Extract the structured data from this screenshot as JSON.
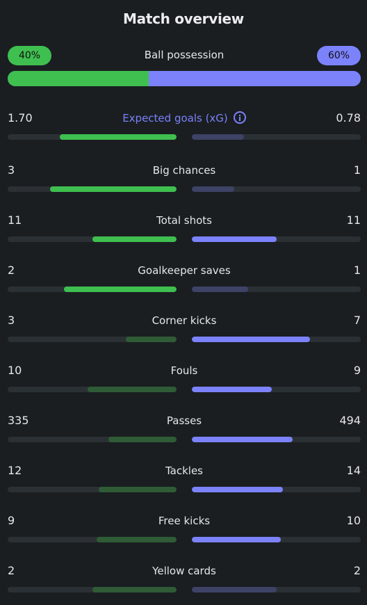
{
  "title": "Match overview",
  "colors": {
    "background": "#1a1e21",
    "home_strong": "#3fbf4f",
    "home_weak": "#2f5c36",
    "away_strong": "#7b82fa",
    "away_weak": "#3d4266",
    "track": "#2b3034"
  },
  "possession": {
    "label": "Ball possession",
    "home_text": "40%",
    "away_text": "60%",
    "home_fraction": 0.4
  },
  "stats": [
    {
      "key": "xg",
      "label": "Expected goals (xG)",
      "home": "1.70",
      "away": "0.78",
      "home_fraction": 0.69,
      "away_fraction": 0.31,
      "home_strong": true,
      "away_strong": false,
      "info_icon": true,
      "highlight": true
    },
    {
      "key": "big-chances",
      "label": "Big chances",
      "home": "3",
      "away": "1",
      "home_fraction": 0.75,
      "away_fraction": 0.25,
      "home_strong": true,
      "away_strong": false
    },
    {
      "key": "total-shots",
      "label": "Total shots",
      "home": "11",
      "away": "11",
      "home_fraction": 0.5,
      "away_fraction": 0.5,
      "home_strong": true,
      "away_strong": true
    },
    {
      "key": "goalkeeper-saves",
      "label": "Goalkeeper saves",
      "home": "2",
      "away": "1",
      "home_fraction": 0.667,
      "away_fraction": 0.333,
      "home_strong": true,
      "away_strong": false
    },
    {
      "key": "corner-kicks",
      "label": "Corner kicks",
      "home": "3",
      "away": "7",
      "home_fraction": 0.3,
      "away_fraction": 0.7,
      "home_strong": false,
      "away_strong": true
    },
    {
      "key": "fouls",
      "label": "Fouls",
      "home": "10",
      "away": "9",
      "home_fraction": 0.526,
      "away_fraction": 0.474,
      "home_strong": false,
      "away_strong": true
    },
    {
      "key": "passes",
      "label": "Passes",
      "home": "335",
      "away": "494",
      "home_fraction": 0.404,
      "away_fraction": 0.596,
      "home_strong": false,
      "away_strong": true
    },
    {
      "key": "tackles",
      "label": "Tackles",
      "home": "12",
      "away": "14",
      "home_fraction": 0.462,
      "away_fraction": 0.538,
      "home_strong": false,
      "away_strong": true
    },
    {
      "key": "free-kicks",
      "label": "Free kicks",
      "home": "9",
      "away": "10",
      "home_fraction": 0.474,
      "away_fraction": 0.526,
      "home_strong": false,
      "away_strong": true
    },
    {
      "key": "yellow-cards",
      "label": "Yellow cards",
      "home": "2",
      "away": "2",
      "home_fraction": 0.5,
      "away_fraction": 0.5,
      "home_strong": false,
      "away_strong": false
    }
  ]
}
